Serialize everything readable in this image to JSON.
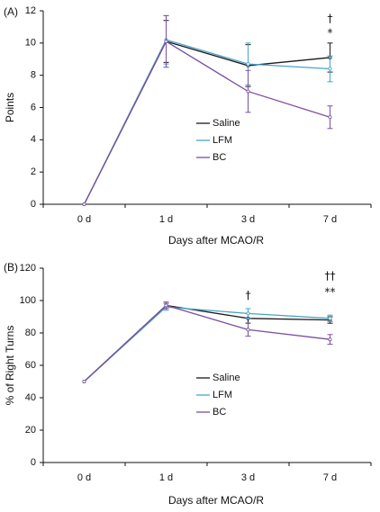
{
  "chart_data": [
    {
      "type": "line",
      "panel_label": "(A)",
      "categories": [
        "0 d",
        "1 d",
        "3 d",
        "7 d"
      ],
      "xlabel": "Days after MCAO/R",
      "ylabel": "Points",
      "ylim": [
        0,
        12
      ],
      "yticks": [
        0,
        2,
        4,
        6,
        8,
        10,
        12
      ],
      "legend_position": "center-right",
      "series": [
        {
          "name": "Saline",
          "color": "#1a1a1a",
          "values": [
            0,
            10.1,
            8.6,
            9.1
          ],
          "errors": [
            0,
            1.3,
            1.3,
            0.9
          ]
        },
        {
          "name": "LFM",
          "color": "#4aa3c8",
          "values": [
            0,
            10.2,
            8.7,
            8.4
          ],
          "errors": [
            0,
            1.5,
            1.3,
            0.8
          ]
        },
        {
          "name": "BC",
          "color": "#7a4fa0",
          "values": [
            0,
            10.1,
            7.0,
            5.4
          ],
          "errors": [
            0,
            1.6,
            1.3,
            0.7
          ]
        }
      ],
      "annotations": [
        {
          "category": "7 d",
          "text": "†",
          "y": 11.5
        },
        {
          "category": "7 d",
          "text": "*",
          "y": 10.6
        }
      ]
    },
    {
      "type": "line",
      "panel_label": "(B)",
      "categories": [
        "0 d",
        "1 d",
        "3 d",
        "7 d"
      ],
      "xlabel": "Days after MCAO/R",
      "ylabel": "% of Right Turns",
      "ylim": [
        0,
        120
      ],
      "yticks": [
        0,
        20,
        40,
        60,
        80,
        100,
        120
      ],
      "legend_position": "center-right",
      "series": [
        {
          "name": "Saline",
          "color": "#1a1a1a",
          "values": [
            50,
            97,
            89,
            88
          ],
          "errors": [
            0,
            2,
            3,
            2
          ]
        },
        {
          "name": "LFM",
          "color": "#4aa3c8",
          "values": [
            50,
            96,
            92,
            89
          ],
          "errors": [
            0,
            2,
            3,
            2
          ]
        },
        {
          "name": "BC",
          "color": "#7a4fa0",
          "values": [
            50,
            97,
            82,
            76
          ],
          "errors": [
            0,
            2,
            4,
            3
          ]
        }
      ],
      "annotations": [
        {
          "category": "3 d",
          "text": "†",
          "y": 103
        },
        {
          "category": "7 d",
          "text": "††",
          "y": 115
        },
        {
          "category": "7 d",
          "text": "**",
          "y": 105
        }
      ]
    }
  ]
}
